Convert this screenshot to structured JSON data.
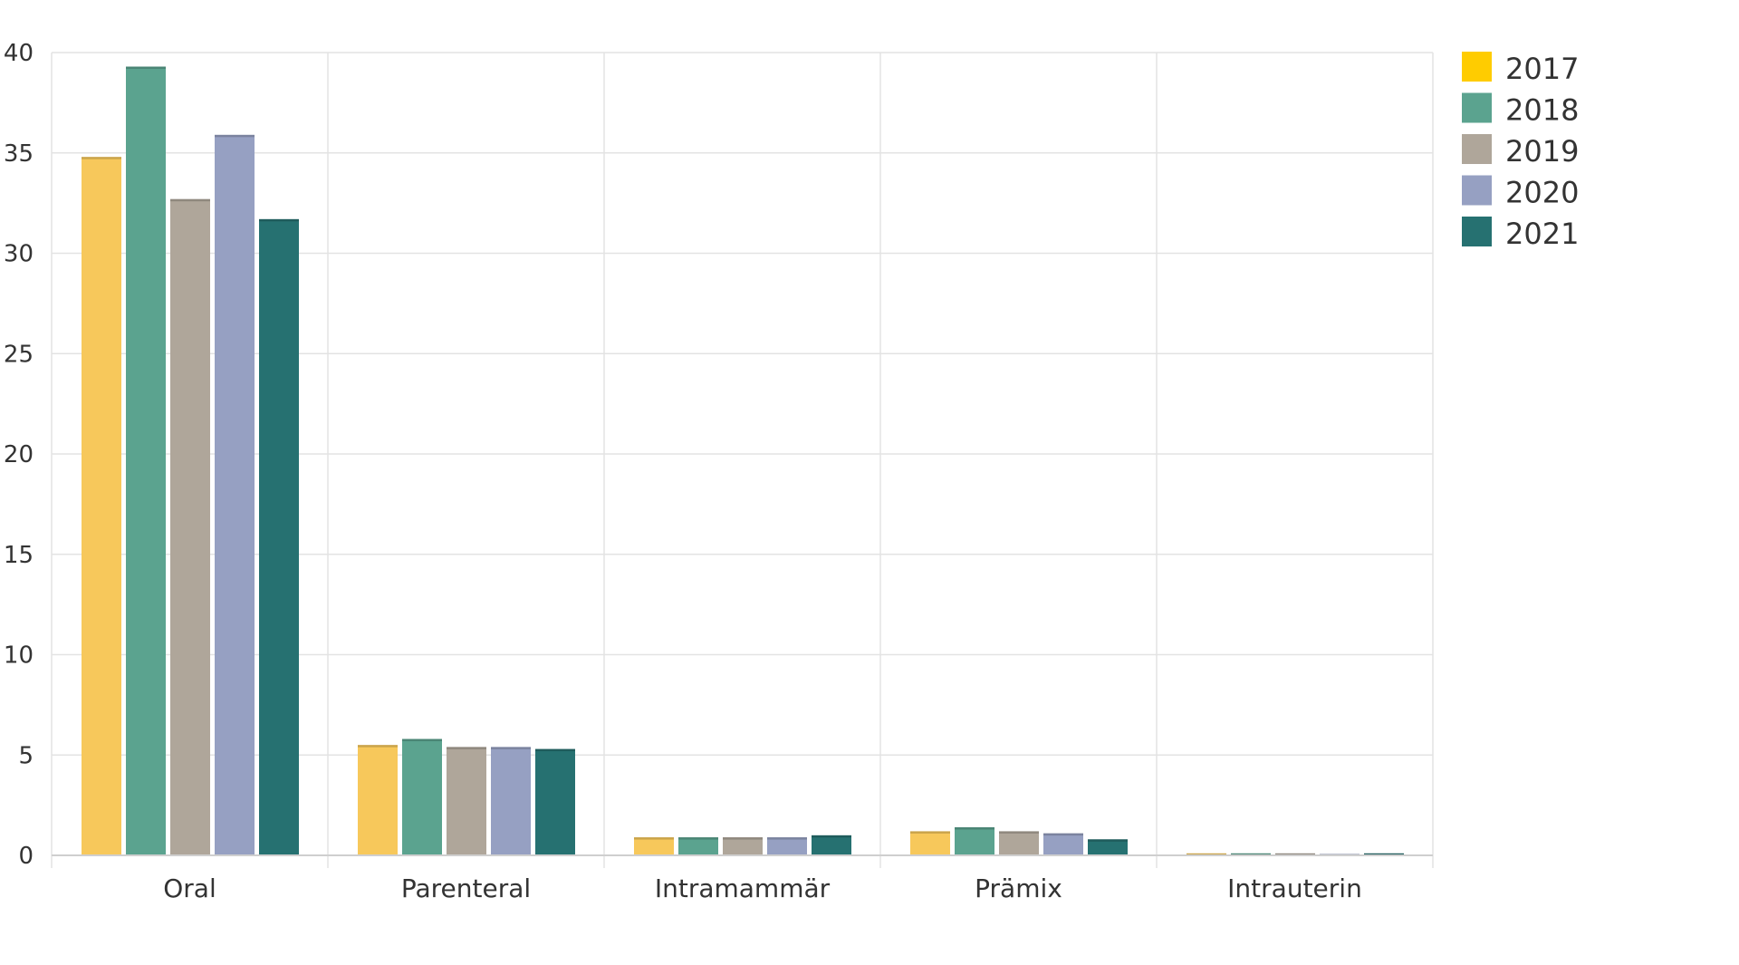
{
  "chart_data": {
    "type": "bar",
    "categories": [
      "Oral",
      "Parenteral",
      "Intramammär",
      "Prämix",
      "Intrauterin"
    ],
    "series": [
      {
        "name": "2017",
        "color": "#F7C85B",
        "values": [
          34.8,
          5.5,
          0.9,
          1.2,
          0.1
        ]
      },
      {
        "name": "2018",
        "color": "#5BA38F",
        "values": [
          39.3,
          5.8,
          0.9,
          1.4,
          0.1
        ]
      },
      {
        "name": "2019",
        "color": "#AFA69A",
        "values": [
          32.7,
          5.4,
          0.9,
          1.2,
          0.1
        ]
      },
      {
        "name": "2020",
        "color": "#96A0C2",
        "values": [
          35.9,
          5.4,
          0.9,
          1.1,
          0.05
        ]
      },
      {
        "name": "2021",
        "color": "#267171",
        "values": [
          31.7,
          5.3,
          1.0,
          0.8,
          0.1
        ]
      }
    ],
    "legend_colors": [
      "#FFCC00",
      "#5BA38F",
      "#AFA69A",
      "#96A0C2",
      "#267171"
    ],
    "yticks": [
      "0",
      "5",
      "10",
      "15",
      "20",
      "25",
      "30",
      "35",
      "40"
    ],
    "ylim": [
      0,
      40
    ],
    "grid": true,
    "legend_position": "top-right"
  }
}
